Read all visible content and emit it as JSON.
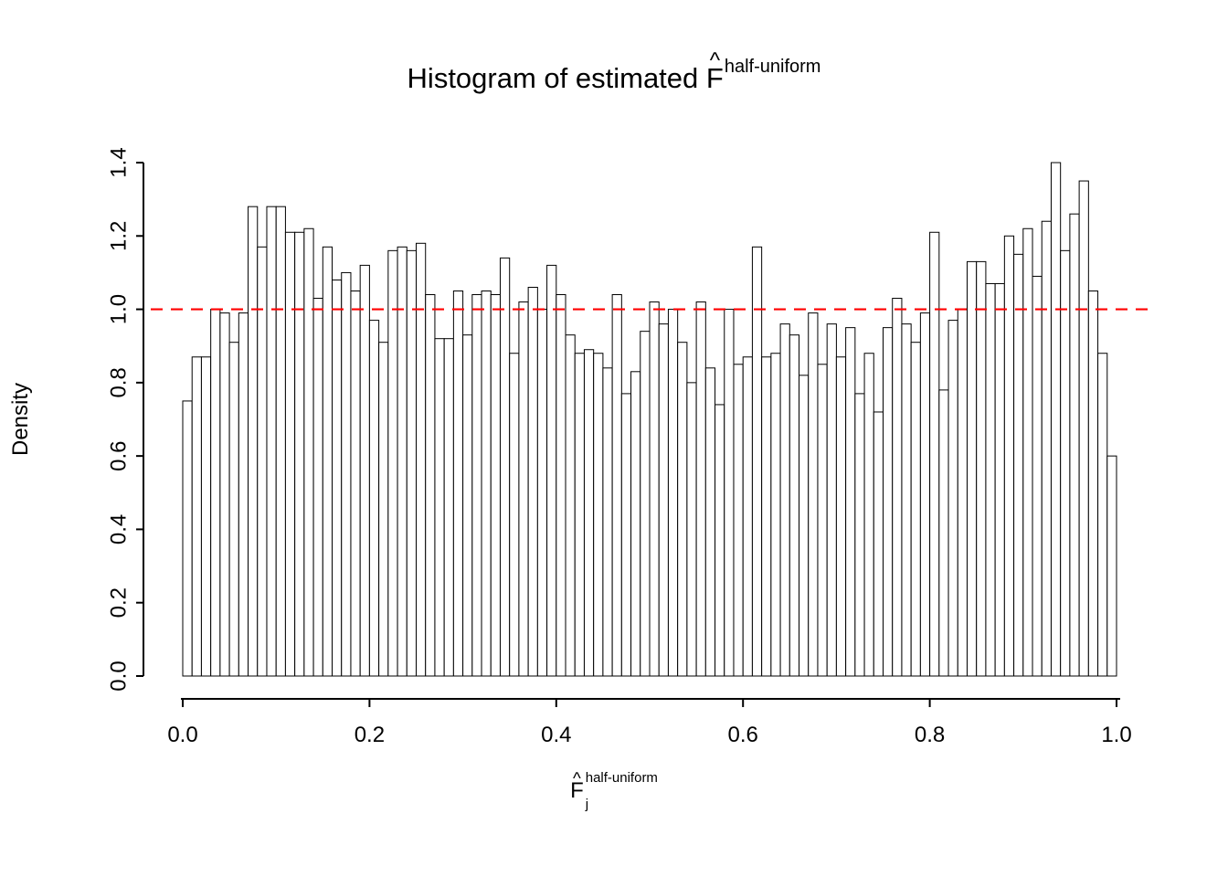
{
  "title": {
    "prefix": "Histogram of estimated ",
    "letter": "F",
    "hat": "^",
    "sup": "half-uniform"
  },
  "y_axis": {
    "label": "Density",
    "ticks": [
      "0.0",
      "0.2",
      "0.4",
      "0.6",
      "0.8",
      "1.0",
      "1.2",
      "1.4"
    ]
  },
  "x_axis": {
    "ticks": [
      "0.0",
      "0.2",
      "0.4",
      "0.6",
      "0.8",
      "1.0"
    ],
    "label": {
      "letter": "F",
      "hat": "^",
      "sub": "j",
      "sup": "half-uniform"
    }
  },
  "reference_line": {
    "value": 1.0,
    "color": "#ff0000",
    "style": "dashed"
  },
  "chart_data": {
    "type": "bar",
    "subtype": "histogram",
    "title": "Histogram of estimated F-hat half-uniform",
    "xlabel": "F-hat_j half-uniform",
    "ylabel": "Density",
    "xlim": [
      0.0,
      1.0
    ],
    "ylim": [
      0.0,
      1.4
    ],
    "bin_start": 0.0,
    "bin_width": 0.01,
    "bar_fill": "#ffffff",
    "bar_stroke": "#000000",
    "grid": "off",
    "reference_line_y": 1.0,
    "values": [
      0.75,
      0.87,
      0.87,
      1.0,
      0.99,
      0.91,
      0.99,
      1.28,
      1.17,
      1.28,
      1.28,
      1.21,
      1.21,
      1.22,
      1.03,
      1.17,
      1.08,
      1.1,
      1.05,
      1.12,
      0.97,
      0.91,
      1.16,
      1.17,
      1.16,
      1.18,
      1.04,
      0.92,
      0.92,
      1.05,
      0.93,
      1.04,
      1.05,
      1.04,
      1.14,
      0.88,
      1.02,
      1.06,
      1.0,
      1.12,
      1.04,
      0.93,
      0.88,
      0.89,
      0.88,
      0.84,
      1.04,
      0.77,
      0.83,
      0.94,
      1.02,
      0.96,
      1.0,
      0.91,
      0.8,
      1.02,
      0.84,
      0.74,
      1.0,
      0.85,
      0.87,
      1.17,
      0.87,
      0.88,
      0.96,
      0.93,
      0.82,
      0.99,
      0.85,
      0.96,
      0.87,
      0.95,
      0.77,
      0.88,
      0.72,
      0.95,
      1.03,
      0.96,
      0.91,
      0.99,
      1.21,
      0.78,
      0.97,
      1.0,
      1.13,
      1.13,
      1.07,
      1.07,
      1.2,
      1.15,
      1.22,
      1.09,
      1.24,
      1.4,
      1.16,
      1.26,
      1.35,
      1.05,
      0.88,
      0.6
    ]
  }
}
